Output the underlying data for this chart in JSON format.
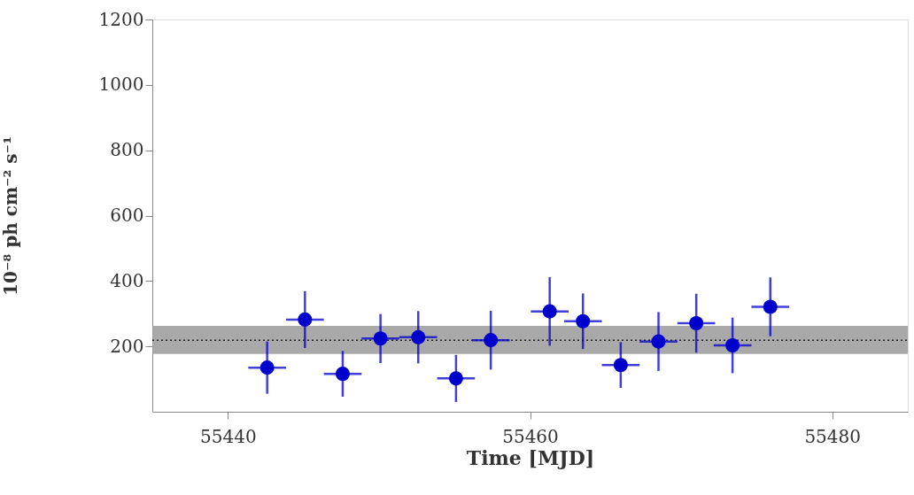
{
  "chart_data": {
    "type": "scatter",
    "xlabel": "Time [MJD]",
    "ylabel": "10⁻⁸ ph cm⁻² s⁻¹",
    "x": [
      55442.6,
      55445.1,
      55447.6,
      55450.1,
      55452.6,
      55455.1,
      55457.4,
      55461.3,
      55463.5,
      55466.0,
      55468.5,
      55471.0,
      55473.4,
      55475.9
    ],
    "series": [
      {
        "color": "#0000cc",
        "values": [
          135,
          282,
          116,
          224,
          228,
          102,
          219,
          307,
          277,
          143,
          215,
          271,
          203,
          321
        ],
        "errors": [
          80,
          87,
          70,
          75,
          80,
          72,
          90,
          105,
          85,
          70,
          90,
          90,
          85,
          90
        ],
        "xerrors": [
          1.25,
          1.25,
          1.25,
          1.25,
          1.25,
          1.25,
          1.25,
          1.25,
          1.25,
          1.25,
          1.25,
          1.25,
          1.25,
          1.25
        ]
      }
    ],
    "xlim": [
      55435,
      55485
    ],
    "xticks": [
      55440,
      55460,
      55480
    ],
    "ylim": [
      0,
      1200
    ],
    "yticks": [
      200,
      400,
      600,
      800,
      1000,
      1200
    ],
    "bands": [
      {
        "axis": "y",
        "from": 177,
        "to": 263,
        "color": "#a0a0a0"
      }
    ],
    "ref_lines": [
      {
        "axis": "y",
        "value": 219,
        "line_style": "dotted",
        "color": "#222222"
      }
    ],
    "marker": "circle",
    "grid": false
  }
}
